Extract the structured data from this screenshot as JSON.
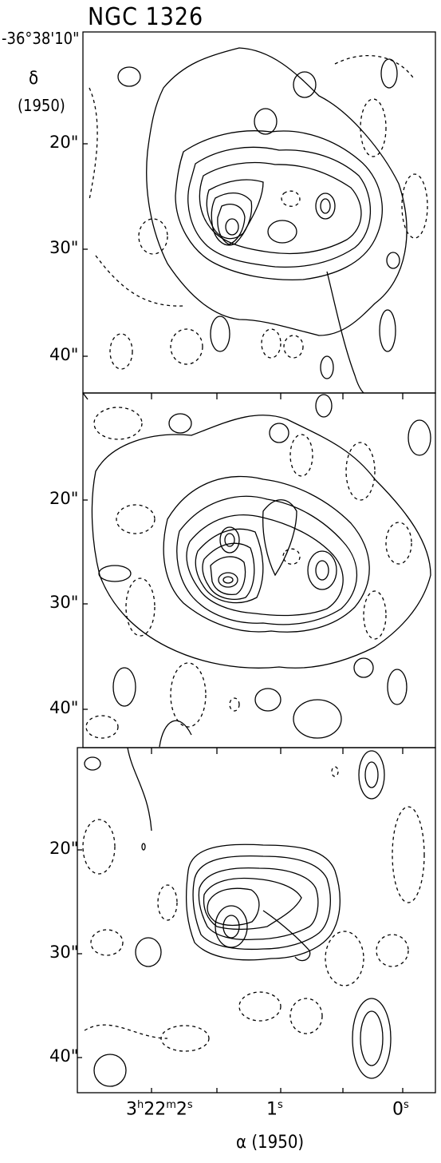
{
  "chart_data": {
    "type": "contour",
    "title": "NGC 1326",
    "y_axis": {
      "origin_label": "-36°38'10\"",
      "symbol": "δ",
      "epoch": "(1950)",
      "tick_labels": [
        "20\"",
        "30\"",
        "40\""
      ]
    },
    "x_axis": {
      "label": "α (1950)",
      "tick_labels": [
        "3h22m2s",
        "1s",
        "0s"
      ]
    },
    "panels": [
      {
        "id": "top",
        "y_ticks": [
          "20\"",
          "30\"",
          "40\""
        ],
        "peaks": 3,
        "depression": 1
      },
      {
        "id": "middle",
        "y_ticks": [
          "20\"",
          "30\"",
          "40\""
        ],
        "peaks": 3,
        "depression": 1
      },
      {
        "id": "bottom",
        "y_ticks": [
          "20\"",
          "30\"",
          "40\""
        ],
        "peaks": 2,
        "depression": 0
      }
    ],
    "contours": "solid = positive levels, dashed = negative levels"
  }
}
